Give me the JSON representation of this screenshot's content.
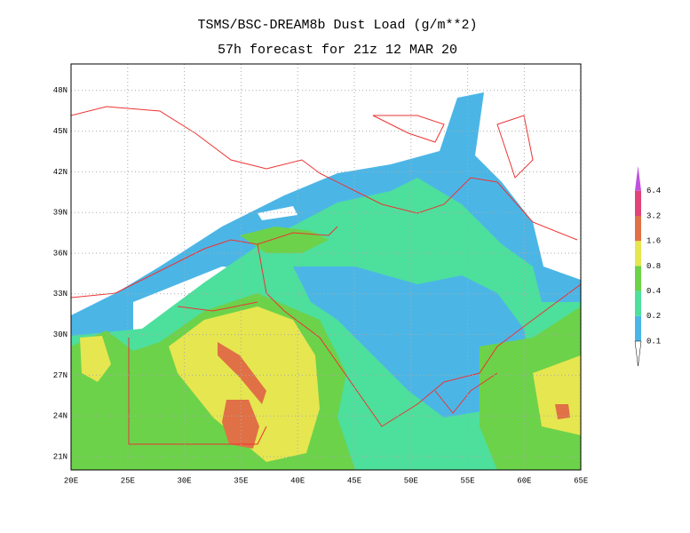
{
  "header": {
    "title": "TSMS/BSC-DREAM8b Dust Load (g/m**2)",
    "subtitle": "57h forecast for 21z 12 MAR 20"
  },
  "map": {
    "lat_labels": [
      "21N",
      "24N",
      "27N",
      "30N",
      "33N",
      "36N",
      "39N",
      "42N",
      "45N",
      "48N"
    ],
    "lon_labels": [
      "20E",
      "25E",
      "30E",
      "35E",
      "40E",
      "45E",
      "50E",
      "55E",
      "60E",
      "65E"
    ]
  },
  "colorbar": {
    "labels": [
      "0.1",
      "0.2",
      "0.4",
      "0.8",
      "1.6",
      "3.2",
      "6.4"
    ]
  }
}
